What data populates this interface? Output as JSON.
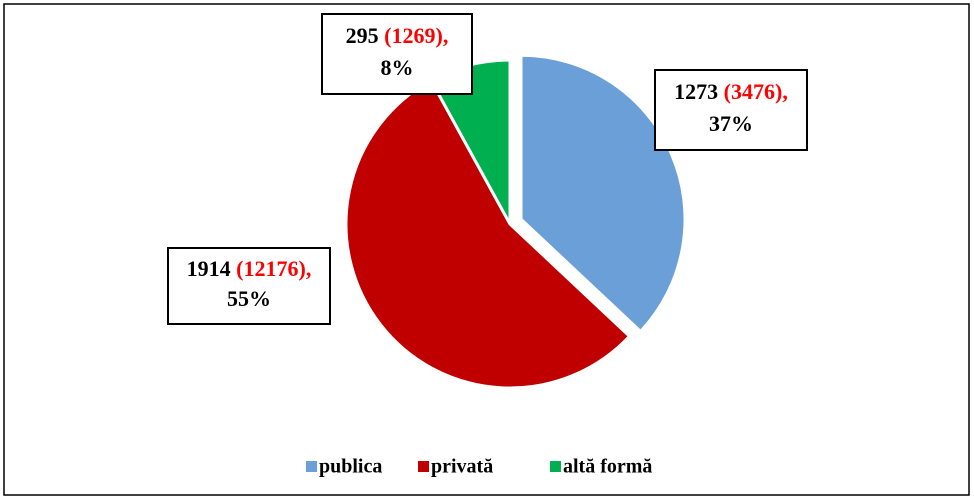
{
  "chart_data": {
    "type": "pie",
    "categories": [
      "publica",
      "privată",
      "altă formă"
    ],
    "values": [
      1273,
      1914,
      295
    ],
    "secondary_labels": [
      "(3476),",
      "(12176),",
      "(1269),"
    ],
    "percentages": [
      37,
      55,
      8
    ],
    "percentage_labels": [
      "37%",
      "55%",
      "8%"
    ],
    "colors": [
      "#6a9fd8",
      "#c00000",
      "#00b050"
    ],
    "secondary_color": "#ff0000",
    "legend": "bottom"
  }
}
